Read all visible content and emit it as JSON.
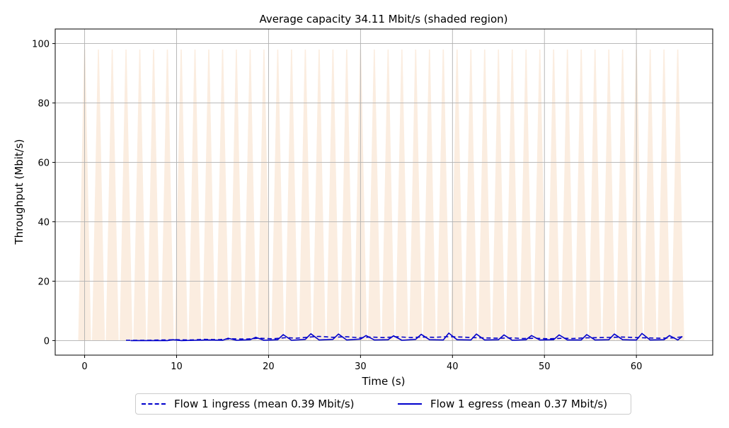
{
  "chart_data": {
    "type": "line",
    "title": "Average capacity 34.11 Mbit/s (shaded region)",
    "xlabel": "Time (s)",
    "ylabel": "Throughput (Mbit/s)",
    "xlim": [
      -3.2,
      68.3
    ],
    "ylim": [
      -4.9,
      104.9
    ],
    "xticks": [
      0,
      10,
      20,
      30,
      40,
      50,
      60
    ],
    "yticks": [
      0,
      20,
      40,
      60,
      80,
      100
    ],
    "grid": true,
    "legend_position": "bottom-center",
    "capacity": {
      "name": "capacity (shaded region)",
      "color": "#fbede0",
      "pulse_times": [
        0,
        1.5,
        3.0,
        4.5,
        6.0,
        7.5,
        9.0,
        10.5,
        12.0,
        13.5,
        15.0,
        16.5,
        18.0,
        19.5,
        21.0,
        22.5,
        24.0,
        25.5,
        27.0,
        28.5,
        30.0,
        31.5,
        33.0,
        34.5,
        36.0,
        37.5,
        39.0,
        40.5,
        42.0,
        43.5,
        45.0,
        46.5,
        48.0,
        49.5,
        51.0,
        52.5,
        54.0,
        55.5,
        57.0,
        58.5,
        60.0,
        61.5,
        63.0,
        64.5
      ],
      "peak": 98
    },
    "series": [
      {
        "name": "Flow 1 ingress (mean 0.39 Mbit/s)",
        "color": "#0000cc",
        "style": "dashed",
        "x": [
          4.5,
          5.5,
          7,
          8.5,
          10,
          11.5,
          13,
          14.5,
          16,
          17.5,
          19,
          20.5,
          22,
          23,
          24.5,
          25.5,
          27,
          28.5,
          30,
          31,
          32.5,
          34,
          35.5,
          36.5,
          38,
          39.5,
          41,
          42,
          43.5,
          45,
          46.5,
          47.5,
          49,
          50.5,
          52,
          53,
          54.5,
          56,
          57.5,
          58.5,
          60,
          61,
          62.5,
          64,
          65
        ],
        "values": [
          0.1,
          0.1,
          0.1,
          0.2,
          0.3,
          0.2,
          0.4,
          0.3,
          0.6,
          0.5,
          0.8,
          0.6,
          1.0,
          0.8,
          1.2,
          1.4,
          1.1,
          1.3,
          0.9,
          1.2,
          1.0,
          1.3,
          1.0,
          1.2,
          1.1,
          1.3,
          1.2,
          1.0,
          0.9,
          0.8,
          0.9,
          0.7,
          0.8,
          0.6,
          0.8,
          0.7,
          0.9,
          1.0,
          1.1,
          1.2,
          1.0,
          0.9,
          0.8,
          0.9,
          1.3
        ]
      },
      {
        "name": "Flow 1 egress (mean 0.37 Mbit/s)",
        "color": "#0000cc",
        "style": "solid",
        "x": [
          5,
          6,
          7.5,
          9,
          9.6,
          10.5,
          12,
          13.5,
          15,
          15.6,
          16.5,
          18,
          18.6,
          19.5,
          21,
          21.6,
          22.5,
          24,
          24.6,
          25.5,
          27,
          27.6,
          28.5,
          30,
          30.6,
          31.5,
          33,
          33.6,
          34.5,
          36,
          36.6,
          37.5,
          39,
          39.6,
          40.5,
          42,
          42.6,
          43.5,
          45,
          45.6,
          46.5,
          48,
          48.6,
          49.5,
          51,
          51.6,
          52.5,
          54,
          54.6,
          55.5,
          57,
          57.6,
          58.5,
          60,
          60.6,
          61.5,
          63,
          63.6,
          64.5,
          65
        ],
        "values": [
          0,
          0,
          0,
          0,
          0.3,
          0,
          0.1,
          0.2,
          0.1,
          0.8,
          0.1,
          0.3,
          1.1,
          0.1,
          0.3,
          2.0,
          0.1,
          0.4,
          2.3,
          0.2,
          0.4,
          2.2,
          0.2,
          0.5,
          1.7,
          0.2,
          0.3,
          1.6,
          0.1,
          0.4,
          2.1,
          0.3,
          0.2,
          2.5,
          0.3,
          0.2,
          2.2,
          0.2,
          0.3,
          1.9,
          0.1,
          0.3,
          1.7,
          0.2,
          0.3,
          1.9,
          0.2,
          0.2,
          2.0,
          0.2,
          0.3,
          2.2,
          0.3,
          0.2,
          2.4,
          0.2,
          0.3,
          1.7,
          0.2,
          1.4
        ]
      }
    ]
  }
}
